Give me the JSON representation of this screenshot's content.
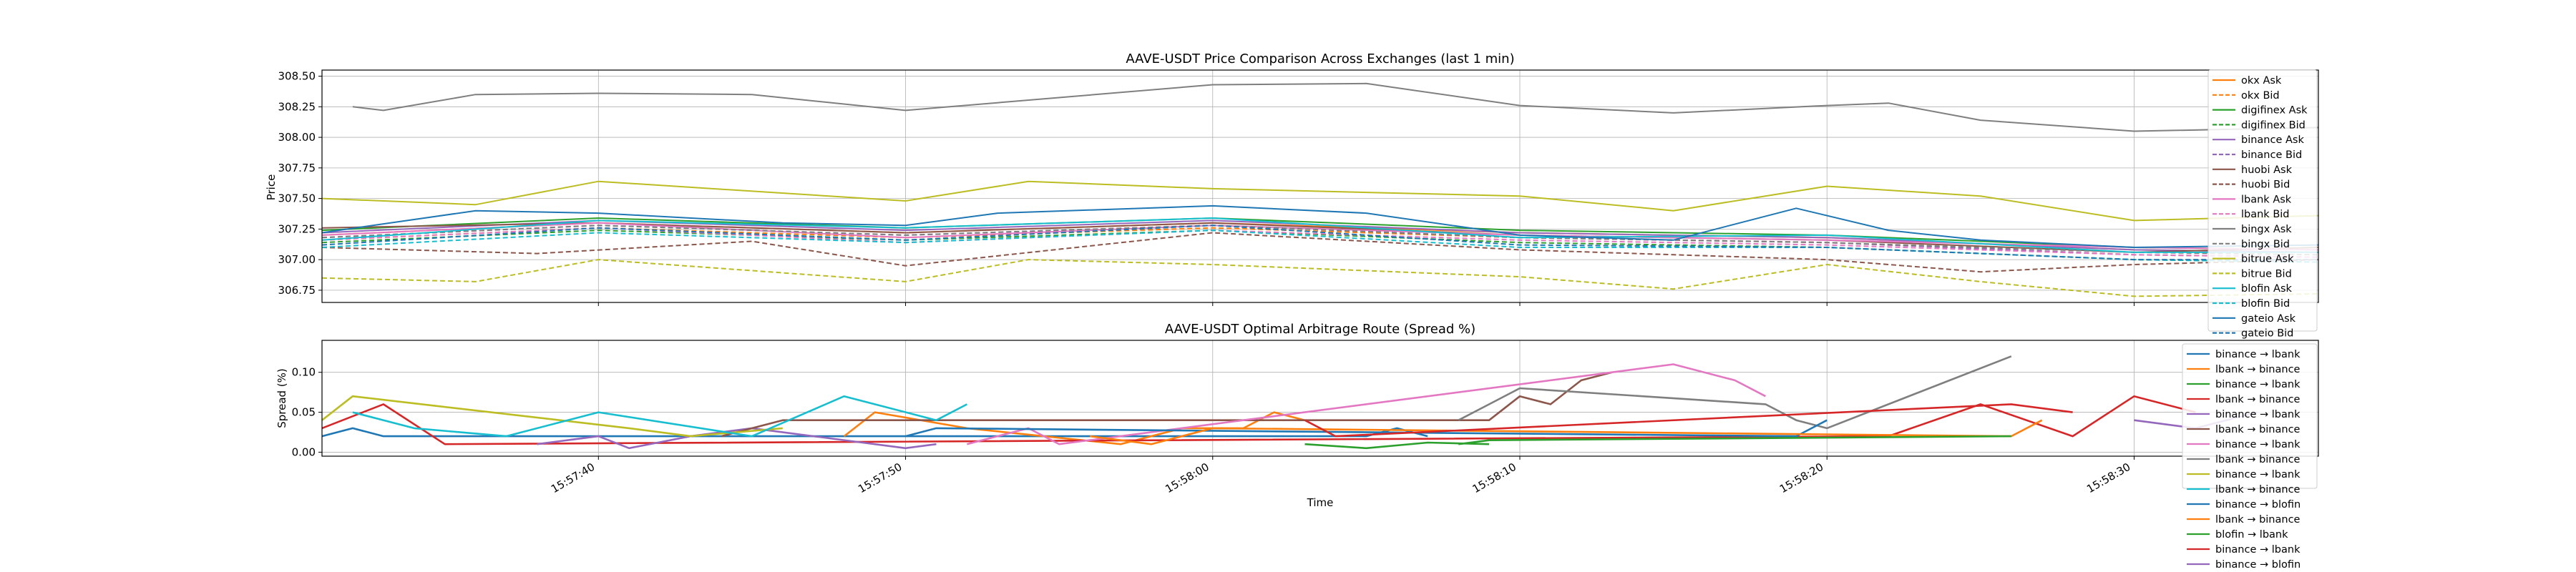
{
  "chart_data": [
    {
      "type": "line",
      "title": "AAVE-USDT Price Comparison Across Exchanges (last 1 min)",
      "xlabel": "",
      "ylabel": "Price",
      "xlim": [
        "15:57:31",
        "15:58:36"
      ],
      "ylim": [
        306.65,
        308.55
      ],
      "y_ticks": [
        "306.75",
        "307.00",
        "307.25",
        "307.50",
        "307.75",
        "308.00",
        "308.25",
        "308.50"
      ],
      "grid": true,
      "legend": "upper-right",
      "series": [
        {
          "name": "okx Ask",
          "color": "#ff7f0e",
          "dash": false,
          "x": [
            "15:57:31",
            "15:57:40",
            "15:57:50",
            "15:58:00",
            "15:58:10",
            "15:58:20",
            "15:58:30",
            "15:58:36"
          ],
          "y": [
            307.2,
            307.3,
            307.22,
            307.3,
            307.22,
            307.18,
            307.08,
            307.06
          ]
        },
        {
          "name": "okx Bid",
          "color": "#ff7f0e",
          "dash": true,
          "x": [
            "15:57:31",
            "15:57:40",
            "15:57:50",
            "15:58:00",
            "15:58:10",
            "15:58:20",
            "15:58:30",
            "15:58:36"
          ],
          "y": [
            307.16,
            307.26,
            307.18,
            307.26,
            307.18,
            307.14,
            307.04,
            307.02
          ]
        },
        {
          "name": "digifinex Ask",
          "color": "#2ca02c",
          "dash": false,
          "x": [
            "15:57:31",
            "15:57:40",
            "15:57:50",
            "15:58:00",
            "15:58:10",
            "15:58:20",
            "15:58:30",
            "15:58:36"
          ],
          "y": [
            307.24,
            307.34,
            307.26,
            307.34,
            307.24,
            307.2,
            307.1,
            307.08
          ]
        },
        {
          "name": "digifinex Bid",
          "color": "#2ca02c",
          "dash": true,
          "x": [
            "15:57:31",
            "15:57:40",
            "15:57:50",
            "15:58:00",
            "15:58:10",
            "15:58:20",
            "15:58:30",
            "15:58:36"
          ],
          "y": [
            307.14,
            307.24,
            307.16,
            307.24,
            307.14,
            307.1,
            307.0,
            306.98
          ]
        },
        {
          "name": "binance Ask",
          "color": "#9467bd",
          "dash": false,
          "x": [
            "15:57:31",
            "15:57:40",
            "15:57:50",
            "15:58:00",
            "15:58:10",
            "15:58:20",
            "15:58:30",
            "15:58:36"
          ],
          "y": [
            307.22,
            307.32,
            307.24,
            307.32,
            307.22,
            307.18,
            307.08,
            307.06
          ]
        },
        {
          "name": "binance Bid",
          "color": "#9467bd",
          "dash": true,
          "x": [
            "15:57:31",
            "15:57:40",
            "15:57:50",
            "15:58:00",
            "15:58:10",
            "15:58:20",
            "15:58:30",
            "15:58:36"
          ],
          "y": [
            307.18,
            307.28,
            307.2,
            307.28,
            307.18,
            307.14,
            307.04,
            307.02
          ]
        },
        {
          "name": "huobi Ask",
          "color": "#8c564b",
          "dash": false,
          "x": [
            "15:57:31",
            "15:57:40",
            "15:57:50",
            "15:58:00",
            "15:58:10",
            "15:58:20",
            "15:58:30",
            "15:58:36"
          ],
          "y": [
            307.26,
            307.3,
            307.22,
            307.3,
            307.2,
            307.16,
            307.06,
            307.1
          ]
        },
        {
          "name": "huobi Bid",
          "color": "#8c564b",
          "dash": true,
          "x": [
            "15:57:31",
            "15:57:38",
            "15:57:45",
            "15:57:50",
            "15:58:00",
            "15:58:10",
            "15:58:20",
            "15:58:25",
            "15:58:30",
            "15:58:36"
          ],
          "y": [
            307.1,
            307.05,
            307.15,
            306.95,
            307.22,
            307.08,
            307.0,
            306.9,
            306.96,
            307.0
          ]
        },
        {
          "name": "lbank Ask",
          "color": "#e377c2",
          "dash": false,
          "x": [
            "15:57:31",
            "15:57:40",
            "15:57:50",
            "15:58:00",
            "15:58:10",
            "15:58:20",
            "15:58:30",
            "15:58:36"
          ],
          "y": [
            307.2,
            307.3,
            307.18,
            307.28,
            307.2,
            307.16,
            307.1,
            307.08
          ]
        },
        {
          "name": "lbank Bid",
          "color": "#e377c2",
          "dash": true,
          "x": [
            "15:57:31",
            "15:57:40",
            "15:57:50",
            "15:58:00",
            "15:58:10",
            "15:58:20",
            "15:58:30",
            "15:58:36"
          ],
          "y": [
            307.16,
            307.26,
            307.14,
            307.24,
            307.16,
            307.12,
            307.04,
            307.02
          ]
        },
        {
          "name": "bingx Ask",
          "color": "#7f7f7f",
          "dash": false,
          "x": [
            "15:57:32",
            "15:57:33",
            "15:57:36",
            "15:57:40",
            "15:57:45",
            "15:57:50",
            "15:58:00",
            "15:58:05",
            "15:58:10",
            "15:58:15",
            "15:58:20",
            "15:58:22",
            "15:58:25",
            "15:58:30",
            "15:58:36"
          ],
          "y": [
            308.25,
            308.22,
            308.35,
            308.36,
            308.35,
            308.22,
            308.43,
            308.44,
            308.26,
            308.2,
            308.26,
            308.28,
            308.14,
            308.05,
            308.08
          ]
        },
        {
          "name": "bingx Bid",
          "color": "#7f7f7f",
          "dash": true,
          "x": [
            "15:57:31",
            "15:57:40",
            "15:57:50",
            "15:58:00",
            "15:58:10",
            "15:58:20",
            "15:58:30",
            "15:58:36"
          ],
          "y": [
            307.18,
            307.28,
            307.2,
            307.28,
            307.18,
            307.14,
            307.06,
            307.04
          ]
        },
        {
          "name": "bitrue Ask",
          "color": "#bcbd22",
          "dash": false,
          "x": [
            "15:57:31",
            "15:57:36",
            "15:57:40",
            "15:57:50",
            "15:57:54",
            "15:58:00",
            "15:58:10",
            "15:58:15",
            "15:58:20",
            "15:58:25",
            "15:58:30",
            "15:58:36"
          ],
          "y": [
            307.5,
            307.45,
            307.64,
            307.48,
            307.64,
            307.58,
            307.52,
            307.4,
            307.6,
            307.52,
            307.32,
            307.36
          ]
        },
        {
          "name": "bitrue Bid",
          "color": "#bcbd22",
          "dash": true,
          "x": [
            "15:57:31",
            "15:57:36",
            "15:57:40",
            "15:57:50",
            "15:57:54",
            "15:58:00",
            "15:58:10",
            "15:58:15",
            "15:58:20",
            "15:58:25",
            "15:58:30",
            "15:58:36"
          ],
          "y": [
            306.85,
            306.82,
            307.0,
            306.82,
            307.0,
            306.96,
            306.86,
            306.76,
            306.96,
            306.82,
            306.7,
            306.72
          ]
        },
        {
          "name": "blofin Ask",
          "color": "#17becf",
          "dash": false,
          "x": [
            "15:57:31",
            "15:57:40",
            "15:57:50",
            "15:58:00",
            "15:58:10",
            "15:58:20",
            "15:58:30",
            "15:58:36"
          ],
          "y": [
            307.16,
            307.32,
            307.26,
            307.34,
            307.18,
            307.2,
            307.06,
            307.06
          ]
        },
        {
          "name": "blofin Bid",
          "color": "#17becf",
          "dash": true,
          "x": [
            "15:57:31",
            "15:57:40",
            "15:57:50",
            "15:58:00",
            "15:58:10",
            "15:58:20",
            "15:58:30",
            "15:58:36"
          ],
          "y": [
            307.1,
            307.22,
            307.14,
            307.24,
            307.1,
            307.1,
            307.0,
            306.98
          ]
        },
        {
          "name": "gateio Ask",
          "color": "#1f77b4",
          "dash": false,
          "x": [
            "15:57:31",
            "15:57:36",
            "15:57:40",
            "15:57:46",
            "15:57:50",
            "15:57:53",
            "15:58:00",
            "15:58:05",
            "15:58:10",
            "15:58:15",
            "15:58:19",
            "15:58:22",
            "15:58:25",
            "15:58:30",
            "15:58:36"
          ],
          "y": [
            307.22,
            307.4,
            307.38,
            307.3,
            307.28,
            307.38,
            307.44,
            307.38,
            307.2,
            307.16,
            307.42,
            307.24,
            307.16,
            307.1,
            307.12
          ]
        },
        {
          "name": "gateio Bid",
          "color": "#1f77b4",
          "dash": true,
          "x": [
            "15:57:31",
            "15:57:40",
            "15:57:50",
            "15:58:00",
            "15:58:10",
            "15:58:20",
            "15:58:30",
            "15:58:36"
          ],
          "y": [
            307.12,
            307.26,
            307.16,
            307.28,
            307.12,
            307.1,
            307.0,
            307.0
          ]
        }
      ]
    },
    {
      "type": "line",
      "title": "AAVE-USDT Optimal Arbitrage Route (Spread %)",
      "xlabel": "Time",
      "ylabel": "Spread (%)",
      "xlim": [
        "15:57:31",
        "15:58:36"
      ],
      "ylim": [
        -0.005,
        0.14
      ],
      "y_ticks": [
        "0.00",
        "0.05",
        "0.10"
      ],
      "x_ticks": [
        "15:57:40",
        "15:57:50",
        "15:58:00",
        "15:58:10",
        "15:58:20",
        "15:58:30"
      ],
      "grid": true,
      "legend": "right",
      "series": [
        {
          "name": "binance → lbank",
          "color": "#1f77b4",
          "x": [
            "15:57:31",
            "15:57:32",
            "15:57:33",
            "15:58:05",
            "15:58:06",
            "15:58:07"
          ],
          "y": [
            0.02,
            0.03,
            0.02,
            0.02,
            0.03,
            0.02
          ]
        },
        {
          "name": "lbank → binance",
          "color": "#ff7f0e",
          "x": [
            "15:57:48",
            "15:57:49",
            "15:57:52",
            "15:57:57",
            "15:57:59",
            "15:58:01",
            "15:58:02",
            "15:58:03"
          ],
          "y": [
            0.02,
            0.05,
            0.03,
            0.01,
            0.03,
            0.03,
            0.05,
            0.04
          ]
        },
        {
          "name": "binance → lbank",
          "color": "#2ca02c",
          "x": [
            "15:58:03",
            "15:58:05",
            "15:58:07",
            "15:58:09"
          ],
          "y": [
            0.01,
            0.005,
            0.012,
            0.01
          ]
        },
        {
          "name": "lbank → binance",
          "color": "#d62728",
          "x": [
            "15:57:31",
            "15:57:33",
            "15:57:35",
            "15:58:22",
            "15:58:25",
            "15:58:28",
            "15:58:30",
            "15:58:32"
          ],
          "y": [
            0.03,
            0.06,
            0.01,
            0.02,
            0.06,
            0.02,
            0.07,
            0.05
          ]
        },
        {
          "name": "binance → lbank",
          "color": "#9467bd",
          "x": [
            "15:57:38",
            "15:57:40",
            "15:57:41",
            "15:57:43",
            "15:57:45",
            "15:57:50",
            "15:57:51"
          ],
          "y": [
            0.01,
            0.02,
            0.005,
            0.02,
            0.03,
            0.005,
            0.01
          ]
        },
        {
          "name": "lbank → binance",
          "color": "#8c564b",
          "x": [
            "15:57:44",
            "15:57:46",
            "15:58:09",
            "15:58:10",
            "15:58:11",
            "15:58:12",
            "15:58:13"
          ],
          "y": [
            0.02,
            0.04,
            0.04,
            0.07,
            0.06,
            0.09,
            0.1
          ]
        },
        {
          "name": "binance → lbank",
          "color": "#e377c2",
          "x": [
            "15:57:52",
            "15:57:54",
            "15:57:55",
            "15:58:13",
            "15:58:15",
            "15:58:17",
            "15:58:18"
          ],
          "y": [
            0.01,
            0.03,
            0.01,
            0.1,
            0.11,
            0.09,
            0.07
          ]
        },
        {
          "name": "lbank → binance",
          "color": "#7f7f7f",
          "x": [
            "15:58:08",
            "15:58:09",
            "15:58:10",
            "15:58:18",
            "15:58:19",
            "15:58:20",
            "15:58:26"
          ],
          "y": [
            0.04,
            0.06,
            0.08,
            0.06,
            0.04,
            0.03,
            0.12
          ]
        },
        {
          "name": "binance → lbank",
          "color": "#bcbd22",
          "x": [
            "15:57:31",
            "15:57:32",
            "15:57:41",
            "15:57:43",
            "15:57:46"
          ],
          "y": [
            0.04,
            0.07,
            0.03,
            0.02,
            0.03
          ]
        },
        {
          "name": "lbank → binance",
          "color": "#17becf",
          "x": [
            "15:57:32",
            "15:57:34",
            "15:57:37",
            "15:57:40",
            "15:57:45",
            "15:57:48",
            "15:57:49",
            "15:57:51",
            "15:57:52"
          ],
          "y": [
            0.05,
            0.03,
            0.02,
            0.05,
            0.02,
            0.07,
            0.06,
            0.04,
            0.06
          ]
        },
        {
          "name": "binance → blofin",
          "color": "#1f77b4",
          "x": [
            "15:57:50",
            "15:57:51",
            "15:58:19",
            "15:58:20"
          ],
          "y": [
            0.02,
            0.03,
            0.02,
            0.04
          ]
        },
        {
          "name": "lbank → binance",
          "color": "#ff7f0e",
          "x": [
            "15:57:56",
            "15:57:58",
            "15:58:00",
            "15:58:26",
            "15:58:27"
          ],
          "y": [
            0.02,
            0.01,
            0.03,
            0.02,
            0.04
          ]
        },
        {
          "name": "blofin → lbank",
          "color": "#2ca02c",
          "x": [
            "15:58:08",
            "15:58:09",
            "15:58:26"
          ],
          "y": [
            0.01,
            0.015,
            0.02
          ]
        },
        {
          "name": "binance → lbank",
          "color": "#d62728",
          "x": [
            "15:58:03",
            "15:58:04",
            "15:58:26",
            "15:58:28"
          ],
          "y": [
            0.04,
            0.02,
            0.06,
            0.05
          ]
        },
        {
          "name": "binance → blofin",
          "color": "#9467bd",
          "x": [
            "15:58:30",
            "15:58:32",
            "15:58:34"
          ],
          "y": [
            0.04,
            0.03,
            0.05
          ]
        }
      ]
    }
  ]
}
